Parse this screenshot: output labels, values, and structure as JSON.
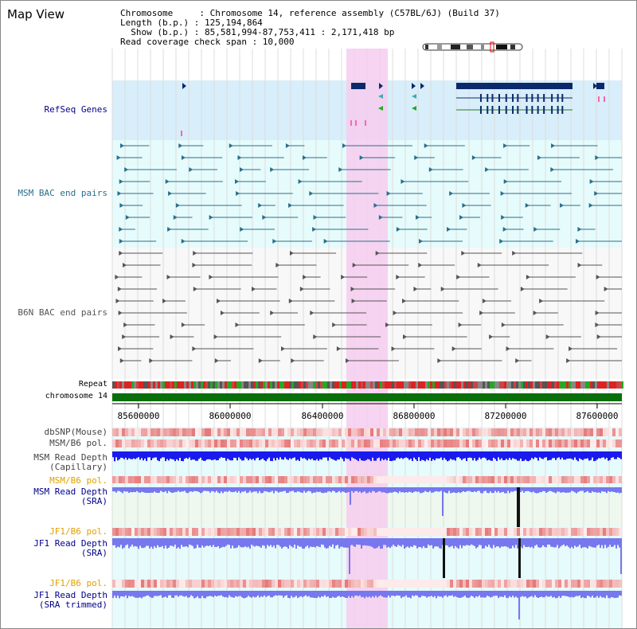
{
  "title": "Map View",
  "info": {
    "line1": "Chromosome     : Chromosome 14, reference assembly (C57BL/6J) (Build 37)",
    "line2": "Length (b.p.) : 125,194,864",
    "line3": "  Show (b.p.) : 85,581,994-87,753,411 : 2,171,418 bp",
    "line4": "Read coverage check span : 10,000"
  },
  "tracks": {
    "refseq": "RefSeq Genes",
    "msm_bac": "MSM BAC end pairs",
    "b6n_bac": "B6N BAC end pairs",
    "repeat": "Repeat",
    "chromosome": "chromosome 14",
    "dbsnp": "dbSNP(Mouse)",
    "msm_b6_pol_1": "MSM/B6 pol.",
    "msm_depth_cap_1": "MSM Read Depth",
    "msm_depth_cap_2": "(Capillary)",
    "msm_b6_pol_2": "MSM/B6 pol.",
    "msm_depth_sra_1": "MSM Read Depth",
    "msm_depth_sra_2": "(SRA)",
    "jf1_b6_pol_1": "JF1/B6 pol.",
    "jf1_depth_sra_1": "JF1 Read Depth",
    "jf1_depth_sra_2": "(SRA)",
    "jf1_b6_pol_2": "JF1/B6 pol.",
    "jf1_depth_trim_1": "JF1 Read Depth",
    "jf1_depth_trim_2": "(SRA trimmed)"
  },
  "axis_ticks": [
    "85600000",
    "86000000",
    "86400000",
    "86800000",
    "87200000",
    "87600000"
  ],
  "colors": {
    "refseq_bg": "#d8eefa",
    "track_bg": "#e6fbfb",
    "highlight": "#f6cdef",
    "gene": "#0a2a6b",
    "msm_bac": "#2a6f8c",
    "b6n_bac": "#555555",
    "chromosome": "#0a6f0a",
    "depth_capillary": "#1a1aee",
    "depth_sra": "#7777ee",
    "label_blue": "#00008b",
    "label_orange": "#e0a000"
  }
}
